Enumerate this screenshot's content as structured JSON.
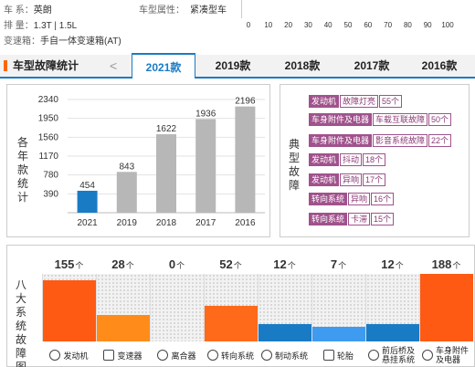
{
  "top": {
    "rows": [
      {
        "key": "车    系：",
        "value": "英朗"
      },
      {
        "key": "排    量：",
        "value": "1.3T | 1.5L"
      },
      {
        "key": "变速箱：",
        "value": "手自一体变速箱(AT)"
      }
    ],
    "type_label": "车型属性：",
    "type_value": "紧凑型车",
    "scale": [
      "0",
      "10",
      "20",
      "30",
      "40",
      "50",
      "60",
      "70",
      "80",
      "90",
      "100"
    ]
  },
  "tabs": {
    "title": "车型故障统计",
    "prev": "<",
    "items": [
      "2021款",
      "2019款",
      "2018款",
      "2017款",
      "2016款"
    ],
    "active": 0
  },
  "stats": {
    "vtitle": [
      "各",
      "年",
      "款",
      "统",
      "计"
    ]
  },
  "chart_data": {
    "type": "bar",
    "categories": [
      "2021",
      "2019",
      "2018",
      "2017",
      "2016"
    ],
    "values": [
      454,
      843,
      1622,
      1936,
      2196
    ],
    "yticks": [
      390,
      780,
      1170,
      1560,
      1950,
      2340
    ],
    "ylim": [
      0,
      2340
    ],
    "colors": [
      "#1a7bc5",
      "#b7b7b7",
      "#b7b7b7",
      "#b7b7b7",
      "#b7b7b7"
    ],
    "grid": true
  },
  "faults": {
    "vtitle": [
      "典",
      "型",
      "故",
      "障"
    ],
    "items": [
      {
        "category": "发动机",
        "issue": "故障灯亮",
        "count": "55个"
      },
      {
        "category": "车身附件及电器",
        "issue": "车载互联故障",
        "count": "50个"
      },
      {
        "category": "车身附件及电器",
        "issue": "影音系统故障",
        "count": "22个"
      },
      {
        "category": "发动机",
        "issue": "抖动",
        "count": "18个"
      },
      {
        "category": "发动机",
        "issue": "异响",
        "count": "17个"
      },
      {
        "category": "转向系统",
        "issue": "异响",
        "count": "16个"
      },
      {
        "category": "转向系统",
        "issue": "卡滞",
        "count": "15个"
      }
    ]
  },
  "systems": {
    "vtitle": [
      "八",
      "大",
      "系",
      "统",
      "故",
      "障",
      "图"
    ],
    "unit": "个",
    "max": 188,
    "items": [
      {
        "name": "发动机",
        "value": 155,
        "color": "#ff5a14",
        "icon": "engine-icon"
      },
      {
        "name": "变速器",
        "value": 28,
        "color": "#ff8c1a",
        "icon": "gearbox-icon"
      },
      {
        "name": "离合器",
        "value": 0,
        "color": "#f2f2f2",
        "icon": "clutch-icon"
      },
      {
        "name": "转向系统",
        "value": 52,
        "color": "#ff6a1a",
        "icon": "steering-icon"
      },
      {
        "name": "制动系统",
        "value": 12,
        "color": "#1a7bc5",
        "icon": "brake-icon"
      },
      {
        "name": "轮胎",
        "value": 7,
        "color": "#3e9bf0",
        "icon": "tire-icon"
      },
      {
        "name": "前后桥及悬挂系统",
        "value": 12,
        "color": "#1a7bc5",
        "icon": "suspension-icon"
      },
      {
        "name": "车身附件及电器",
        "value": 188,
        "color": "#ff5a14",
        "icon": "body-electric-icon"
      }
    ]
  }
}
